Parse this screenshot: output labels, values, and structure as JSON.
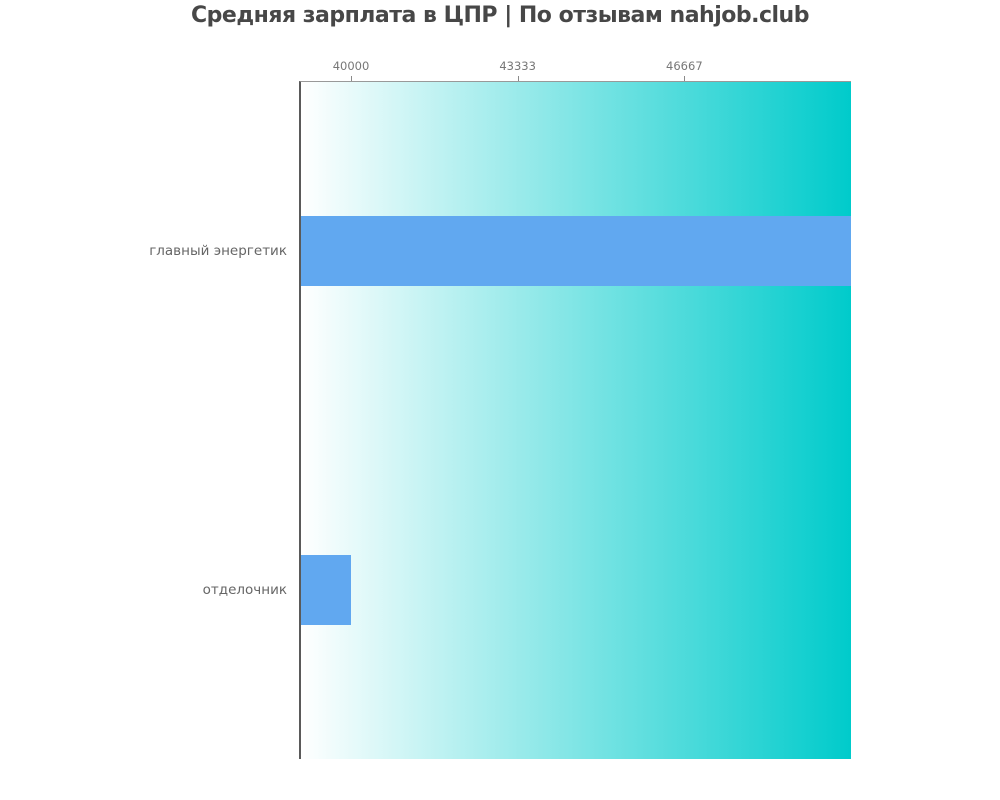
{
  "title": "Средняя зарплата в ЦПР | По отзывам nahjob.club",
  "colors": {
    "bar": "#61a8f0",
    "gradient_left": "#ffffff",
    "gradient_right": "#00cbcb",
    "title_text": "#474747",
    "axis_text": "#777777",
    "category_text": "#666666",
    "left_spine": "#5a5a5a",
    "top_border": "#999999",
    "tick_mark": "#8a8a8a",
    "page_background": "#ffffff"
  },
  "chart_data": {
    "type": "bar",
    "orientation": "horizontal",
    "title": "Средняя зарплата в ЦПР | По отзывам nahjob.club",
    "categories": [
      "главный энергетик",
      "отделочник"
    ],
    "values": [
      50000,
      40000
    ],
    "xlabel": "",
    "ylabel": "",
    "xlim": [
      39000,
      50000
    ],
    "xticks": [
      40000,
      43333,
      46667
    ],
    "xtick_labels": [
      "40000",
      "43333",
      "46667"
    ],
    "xaxis_position": "top",
    "grid": false,
    "legend": false,
    "plot_background": "gradient white to cyan, left to right"
  }
}
